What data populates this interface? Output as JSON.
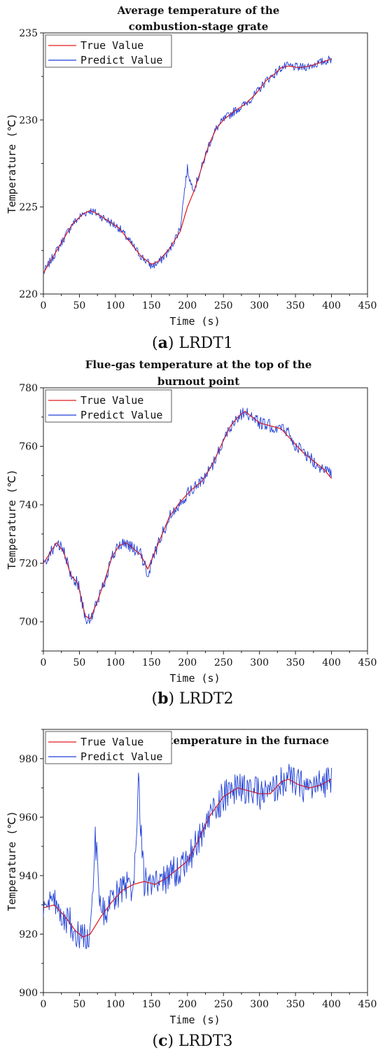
{
  "chart_data": [
    {
      "type": "line",
      "caption_letter": "a",
      "caption_text": "LRDT1",
      "title_lines": [
        "Average temperature of the",
        "combustion-stage grate"
      ],
      "xlabel": "Time (s)",
      "ylabel": "Temperature (℃)",
      "xlim": [
        0,
        450
      ],
      "ylim": [
        220,
        235
      ],
      "xticks": [
        0,
        50,
        100,
        150,
        200,
        250,
        300,
        350,
        400,
        450
      ],
      "yticks": [
        220,
        225,
        230,
        235
      ],
      "legend": "top-left",
      "noise_scale": 0.25,
      "series": [
        {
          "name": "True Value",
          "color": "#e31a1c",
          "x": [
            0,
            20,
            40,
            55,
            65,
            75,
            90,
            105,
            120,
            135,
            150,
            160,
            175,
            190,
            200,
            210,
            220,
            230,
            240,
            250,
            265,
            280,
            295,
            310,
            320,
            330,
            340,
            355,
            370,
            385,
            400
          ],
          "y": [
            221.2,
            222.6,
            224.0,
            224.6,
            224.8,
            224.6,
            224.2,
            223.8,
            223.0,
            222.2,
            221.7,
            221.9,
            222.6,
            223.6,
            225.0,
            226.0,
            227.3,
            228.6,
            229.5,
            230.0,
            230.5,
            230.9,
            231.5,
            232.3,
            232.6,
            233.0,
            233.1,
            233.0,
            233.1,
            233.3,
            233.5
          ]
        },
        {
          "name": "Predict Value",
          "color": "#1f3fd6",
          "x": [
            0,
            20,
            40,
            55,
            65,
            75,
            90,
            105,
            120,
            135,
            150,
            160,
            175,
            190,
            196,
            200,
            205,
            210,
            220,
            230,
            240,
            250,
            265,
            280,
            295,
            310,
            320,
            330,
            340,
            355,
            370,
            385,
            400
          ],
          "y": [
            221.2,
            222.6,
            224.0,
            224.6,
            224.8,
            224.6,
            224.2,
            223.8,
            223.0,
            222.2,
            221.6,
            221.8,
            222.5,
            223.8,
            226.0,
            227.2,
            226.3,
            226.1,
            227.3,
            228.6,
            229.5,
            230.0,
            230.5,
            230.9,
            231.5,
            232.3,
            232.6,
            233.0,
            233.1,
            233.0,
            233.1,
            233.3,
            233.5
          ]
        }
      ]
    },
    {
      "type": "line",
      "caption_letter": "b",
      "caption_text": "LRDT2",
      "title_lines": [
        "Flue-gas temperature at the top of the",
        "burnout point"
      ],
      "xlabel": "Time (s)",
      "ylabel": "Temperature (℃)",
      "xlim": [
        0,
        450
      ],
      "ylim": [
        690,
        780
      ],
      "xticks": [
        0,
        50,
        100,
        150,
        200,
        250,
        300,
        350,
        400,
        450
      ],
      "yticks": [
        700,
        720,
        740,
        760,
        780
      ],
      "legend": "top-left",
      "noise_scale": 2.2,
      "series": [
        {
          "name": "True Value",
          "color": "#e31a1c",
          "x": [
            0,
            8,
            18,
            28,
            38,
            48,
            58,
            65,
            75,
            85,
            95,
            105,
            115,
            125,
            135,
            145,
            155,
            165,
            175,
            190,
            205,
            220,
            235,
            250,
            260,
            270,
            280,
            290,
            300,
            315,
            330,
            345,
            360,
            375,
            390,
            400
          ],
          "y": [
            720,
            723,
            727,
            724,
            716,
            713,
            702,
            701,
            707,
            714,
            722,
            726,
            727,
            725,
            723,
            718,
            724,
            730,
            736,
            741,
            745,
            748,
            754,
            762,
            767,
            770,
            772,
            770,
            768,
            767,
            766,
            762,
            758,
            755,
            752,
            749
          ]
        },
        {
          "name": "Predict Value",
          "color": "#1f3fd6",
          "x": [
            0,
            8,
            18,
            28,
            38,
            48,
            58,
            65,
            75,
            85,
            95,
            105,
            115,
            125,
            135,
            145,
            155,
            165,
            175,
            190,
            205,
            220,
            235,
            250,
            260,
            270,
            280,
            290,
            300,
            315,
            330,
            340,
            345,
            360,
            375,
            390,
            400
          ],
          "y": [
            720,
            723,
            727,
            724,
            716,
            713,
            702,
            700,
            707,
            714,
            722,
            726,
            727,
            725,
            723,
            716,
            724,
            730,
            736,
            741,
            745,
            748,
            754,
            762,
            767,
            770,
            772,
            770,
            768,
            767,
            766,
            765,
            762,
            758,
            755,
            752,
            750
          ]
        }
      ]
    },
    {
      "type": "line",
      "caption_letter": "c",
      "caption_text": "LRDT3",
      "title_lines": [
        "Average flue-gas temperature in the furnace"
      ],
      "xlabel": "Time (s)",
      "ylabel": "Temperature (℃)",
      "xlim": [
        0,
        450
      ],
      "ylim": [
        900,
        990
      ],
      "xticks": [
        0,
        50,
        100,
        150,
        200,
        250,
        300,
        350,
        400,
        450
      ],
      "yticks": [
        900,
        920,
        940,
        960,
        980
      ],
      "legend": "top-left",
      "noise_scale": 5.5,
      "series": [
        {
          "name": "True Value",
          "color": "#e31a1c",
          "x": [
            0,
            15,
            30,
            45,
            55,
            65,
            80,
            95,
            110,
            125,
            140,
            155,
            170,
            185,
            200,
            215,
            230,
            250,
            270,
            285,
            300,
            315,
            330,
            340,
            355,
            370,
            385,
            400
          ],
          "y": [
            929,
            930,
            926,
            921,
            919,
            920,
            926,
            931,
            935,
            937,
            938,
            937,
            939,
            942,
            945,
            952,
            960,
            967,
            970,
            969,
            968,
            968,
            972,
            973,
            971,
            970,
            971,
            973
          ]
        },
        {
          "name": "Predict Value",
          "color": "#1f3fd6",
          "x": [
            0,
            15,
            30,
            45,
            55,
            65,
            72,
            80,
            95,
            110,
            125,
            132,
            140,
            155,
            170,
            185,
            200,
            215,
            230,
            250,
            270,
            285,
            300,
            315,
            330,
            340,
            355,
            370,
            385,
            400
          ],
          "y": [
            929,
            930,
            926,
            921,
            919,
            920,
            953,
            926,
            931,
            935,
            937,
            971,
            938,
            937,
            939,
            942,
            945,
            952,
            960,
            967,
            970,
            969,
            968,
            968,
            972,
            973,
            971,
            970,
            971,
            974
          ]
        }
      ]
    }
  ]
}
